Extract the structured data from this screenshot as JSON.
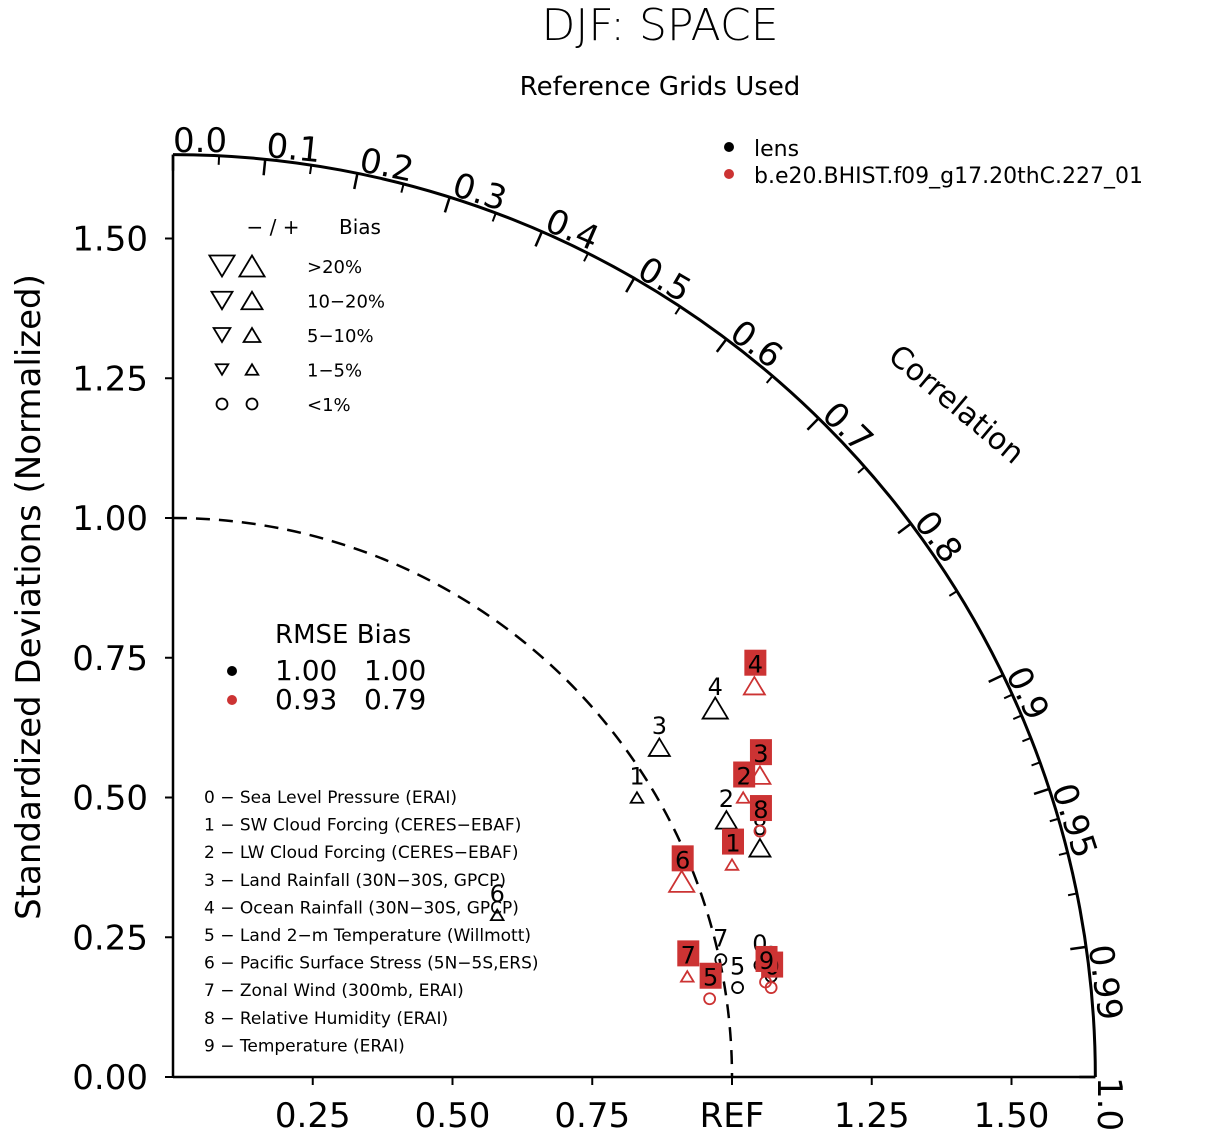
{
  "title": "DJF: SPACE",
  "subtitle": "Reference Grids Used",
  "ylabel": "Standardized Deviations (Normalized)",
  "corr_label": "Correlation",
  "chart_data": {
    "type": "taylor",
    "title": "DJF: SPACE",
    "subtitle": "Reference Grids Used",
    "ylabel": "Standardized Deviations (Normalized)",
    "arc_label": "Correlation",
    "std_range": [
      0,
      1.65
    ],
    "y_ticks": [
      "0.00",
      "0.25",
      "0.50",
      "0.75",
      "1.00",
      "1.25",
      "1.50"
    ],
    "x_ticks": [
      {
        "v": 0.25,
        "label": "0.25"
      },
      {
        "v": 0.5,
        "label": "0.50"
      },
      {
        "v": 0.75,
        "label": "0.75"
      },
      {
        "v": 1.0,
        "label": "REF"
      },
      {
        "v": 1.25,
        "label": "1.25"
      },
      {
        "v": 1.5,
        "label": "1.50"
      }
    ],
    "corr_ticks": [
      "0.0",
      "0.1",
      "0.2",
      "0.3",
      "0.4",
      "0.5",
      "0.6",
      "0.7",
      "0.8",
      "0.9",
      "0.95",
      "0.99",
      "1.0"
    ],
    "series": [
      {
        "name": "lens",
        "color": "#000000"
      },
      {
        "name": "b.e20.BHIST.f09_g17.20thC.227_01",
        "color": "#cc3333"
      }
    ],
    "points": [
      {
        "series": 0,
        "id": "0",
        "x": 1.05,
        "y": 0.2,
        "sym": "circle",
        "size": 1
      },
      {
        "series": 0,
        "id": "1",
        "x": 0.83,
        "y": 0.5,
        "sym": "up",
        "size": 1
      },
      {
        "series": 0,
        "id": "2",
        "x": 0.99,
        "y": 0.46,
        "sym": "up",
        "size": 3
      },
      {
        "series": 0,
        "id": "3",
        "x": 0.87,
        "y": 0.59,
        "sym": "up",
        "size": 3
      },
      {
        "series": 0,
        "id": "4",
        "x": 0.97,
        "y": 0.66,
        "sym": "up",
        "size": 4
      },
      {
        "series": 0,
        "id": "5",
        "x": 1.01,
        "y": 0.16,
        "sym": "circle",
        "size": 1
      },
      {
        "series": 0,
        "id": "6",
        "x": 0.58,
        "y": 0.29,
        "sym": "up",
        "size": 1
      },
      {
        "series": 0,
        "id": "7",
        "x": 0.98,
        "y": 0.21,
        "sym": "circle",
        "size": 1
      },
      {
        "series": 0,
        "id": "8",
        "x": 1.05,
        "y": 0.41,
        "sym": "up",
        "size": 3
      },
      {
        "series": 0,
        "id": "9",
        "x": 1.07,
        "y": 0.18,
        "sym": "circle",
        "size": 1
      },
      {
        "series": 1,
        "id": "0",
        "x": 1.07,
        "y": 0.16,
        "sym": "circle",
        "size": 1
      },
      {
        "series": 1,
        "id": "1",
        "x": 1.0,
        "y": 0.38,
        "sym": "up",
        "size": 1
      },
      {
        "series": 1,
        "id": "2",
        "x": 1.02,
        "y": 0.5,
        "sym": "up",
        "size": 1
      },
      {
        "series": 1,
        "id": "3",
        "x": 1.05,
        "y": 0.54,
        "sym": "up",
        "size": 3
      },
      {
        "series": 1,
        "id": "4",
        "x": 1.04,
        "y": 0.7,
        "sym": "up",
        "size": 3
      },
      {
        "series": 1,
        "id": "5",
        "x": 0.96,
        "y": 0.14,
        "sym": "circle",
        "size": 1
      },
      {
        "series": 1,
        "id": "6",
        "x": 0.91,
        "y": 0.35,
        "sym": "up",
        "size": 4
      },
      {
        "series": 1,
        "id": "7",
        "x": 0.92,
        "y": 0.18,
        "sym": "up",
        "size": 1
      },
      {
        "series": 1,
        "id": "8",
        "x": 1.05,
        "y": 0.44,
        "sym": "circle",
        "size": 1
      },
      {
        "series": 1,
        "id": "9",
        "x": 1.06,
        "y": 0.17,
        "sym": "circle",
        "size": 1
      }
    ],
    "bias_legend": {
      "header_sign": "− / +",
      "header_bias": "Bias",
      "rows": [
        {
          "label": ">20%",
          "size": 4,
          "sym": "tri"
        },
        {
          "label": "10−20%",
          "size": 3,
          "sym": "tri"
        },
        {
          "label": "5−10%",
          "size": 2,
          "sym": "tri"
        },
        {
          "label": "1−5%",
          "size": 1,
          "sym": "tri"
        },
        {
          "label": "<1%",
          "size": 1,
          "sym": "circle"
        }
      ]
    },
    "rmse_table": {
      "header": "RMSE Bias",
      "rows": [
        {
          "color": "#000000",
          "rmse": "1.00",
          "bias": "1.00"
        },
        {
          "color": "#cc3333",
          "rmse": "0.93",
          "bias": "0.79"
        }
      ]
    },
    "variables": [
      "0 − Sea Level Pressure (ERAI)",
      "1 − SW Cloud Forcing (CERES−EBAF)",
      "2 − LW Cloud Forcing (CERES−EBAF)",
      "3 − Land Rainfall (30N−30S, GPCP)",
      "4 − Ocean Rainfall (30N−30S, GPCP)",
      "5 − Land 2−m Temperature (Willmott)",
      "6 − Pacific Surface Stress (5N−5S,ERS)",
      "7 − Zonal Wind (300mb, ERAI)",
      "8 − Relative Humidity (ERAI)",
      "9 − Temperature (ERAI)"
    ]
  }
}
